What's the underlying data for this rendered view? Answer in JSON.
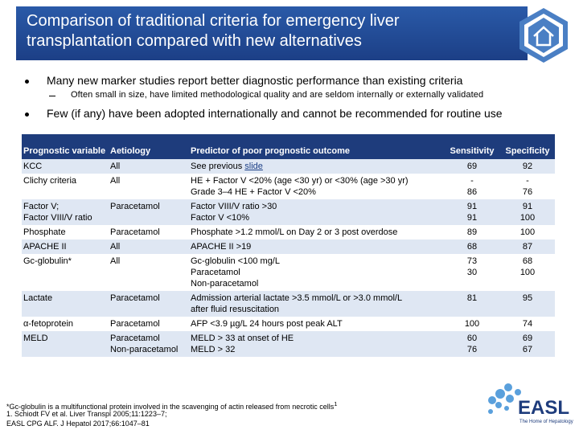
{
  "header": {
    "title": [
      "Comparison of traditional criteria for emergency liver",
      "transplantation compared with new alternatives"
    ]
  },
  "bullets": [
    {
      "level": 1,
      "text": "Many new marker studies report better diagnostic performance than existing criteria"
    },
    {
      "level": 2,
      "text": "Often small in size, have limited methodological quality and are seldom internally or externally validated"
    },
    {
      "level": 1,
      "text": "Few (if any) have been adopted internationally and cannot be recommended for routine use"
    }
  ],
  "table": {
    "columns": [
      "Prognostic variable",
      "Aetiology",
      "Predictor of poor prognostic outcome",
      "Sensitivity",
      "Specificity"
    ],
    "rows": [
      [
        [
          "KCC"
        ],
        [
          "All"
        ],
        {
          "lines": [
            "See previous "
          ],
          "link": "slide"
        },
        [
          "69"
        ],
        [
          "92"
        ]
      ],
      [
        [
          "Clichy criteria"
        ],
        [
          "All"
        ],
        [
          "HE + Factor V <20% (age <30 yr) or <30% (age >30 yr)",
          "Grade 3–4 HE + Factor V <20%"
        ],
        [
          "-",
          "86"
        ],
        [
          "-",
          "76"
        ]
      ],
      [
        [
          "Factor V;",
          "Factor VIII/V ratio"
        ],
        [
          "Paracetamol"
        ],
        [
          "Factor VIII/V ratio >30",
          "Factor V <10%"
        ],
        [
          "91",
          "91"
        ],
        [
          "91",
          "100"
        ]
      ],
      [
        [
          "Phosphate"
        ],
        [
          "Paracetamol"
        ],
        [
          "Phosphate >1.2 mmol/L on Day 2 or 3 post overdose"
        ],
        [
          "89"
        ],
        [
          "100"
        ]
      ],
      [
        [
          "APACHE II"
        ],
        [
          "All"
        ],
        [
          "APACHE II >19"
        ],
        [
          "68"
        ],
        [
          "87"
        ]
      ],
      [
        [
          "Gc-globulin*"
        ],
        [
          "All"
        ],
        [
          "Gc-globulin <100 mg/L",
          "Paracetamol",
          "Non-paracetamol"
        ],
        [
          "73",
          "30"
        ],
        [
          "68",
          "100"
        ]
      ],
      [
        [
          "Lactate"
        ],
        [
          "Paracetamol"
        ],
        [
          "Admission arterial lactate >3.5 mmol/L or >3.0 mmol/L",
          "after fluid resuscitation"
        ],
        [
          "81"
        ],
        [
          "95"
        ]
      ],
      [
        [
          "α-fetoprotein"
        ],
        [
          "Paracetamol"
        ],
        [
          "AFP <3.9 µg/L 24 hours post peak ALT"
        ],
        [
          "100"
        ],
        [
          "74"
        ]
      ],
      [
        [
          "MELD"
        ],
        [
          "Paracetamol",
          "Non-paracetamol"
        ],
        [
          "MELD > 33 at onset of HE",
          "MELD > 32"
        ],
        [
          "60",
          "76"
        ],
        [
          "69",
          "67"
        ]
      ]
    ]
  },
  "footnotes": [
    {
      "text": "*Gc-globulin is a multifunctional protein involved in the scavenging of actin released from necrotic cells",
      "sup": "1"
    },
    {
      "text": "1. Schiodt FV et al. Liver Transpl 2005;11:1223–7;"
    },
    {
      "text": "EASL CPG ALF. J Hepatol 2017;66:1047–81"
    }
  ],
  "logo": {
    "name": "EASL",
    "tagline": "The Home of Hepatology"
  }
}
